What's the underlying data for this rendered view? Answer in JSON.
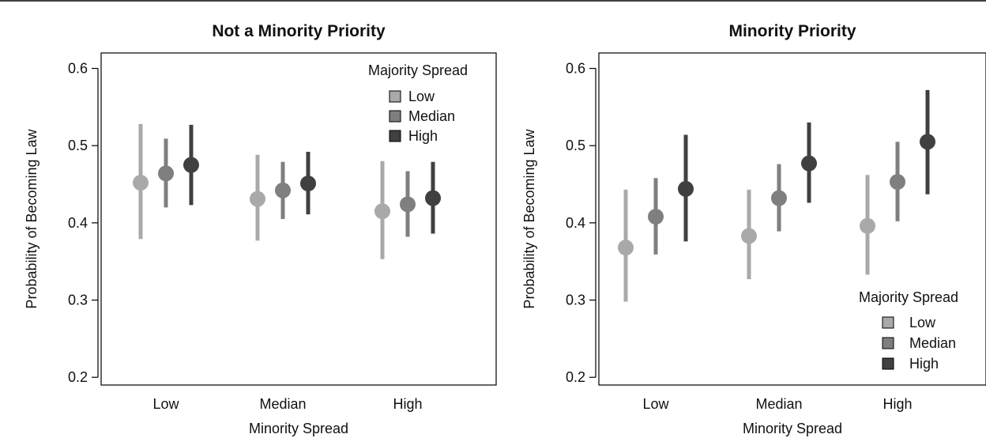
{
  "chart_data": [
    {
      "type": "scatter",
      "title": "Not a Minority Priority",
      "xlabel": "Minority Spread",
      "ylabel": "Probability of Becoming Law",
      "categories": [
        "Low",
        "Median",
        "High"
      ],
      "ylim": [
        0.19,
        0.62
      ],
      "yticks": [
        0.2,
        0.3,
        0.4,
        0.5,
        0.6
      ],
      "ytick_labels": [
        "0.2",
        "0.3",
        "0.4",
        "0.5",
        "0.6"
      ],
      "grid": false,
      "legend": {
        "title": "Majority Spread",
        "position": "top-right"
      },
      "series": [
        {
          "name": "Low",
          "color": "#a9a9a9",
          "values": [
            0.452,
            0.431,
            0.415
          ],
          "lower": [
            0.379,
            0.377,
            0.353
          ],
          "upper": [
            0.528,
            0.488,
            0.48
          ]
        },
        {
          "name": "Median",
          "color": "#7f7f7f",
          "values": [
            0.464,
            0.442,
            0.424
          ],
          "lower": [
            0.42,
            0.405,
            0.382
          ],
          "upper": [
            0.509,
            0.479,
            0.467
          ]
        },
        {
          "name": "High",
          "color": "#404040",
          "values": [
            0.475,
            0.451,
            0.432
          ],
          "lower": [
            0.423,
            0.411,
            0.386
          ],
          "upper": [
            0.527,
            0.492,
            0.479
          ]
        }
      ]
    },
    {
      "type": "scatter",
      "title": "Minority Priority",
      "xlabel": "Minority Spread",
      "ylabel": "Probability of Becoming Law",
      "categories": [
        "Low",
        "Median",
        "High"
      ],
      "ylim": [
        0.19,
        0.62
      ],
      "yticks": [
        0.2,
        0.3,
        0.4,
        0.5,
        0.6
      ],
      "ytick_labels": [
        "0.2",
        "0.3",
        "0.4",
        "0.5",
        "0.6"
      ],
      "grid": false,
      "legend": {
        "title": "Majority Spread",
        "position": "bottom-right"
      },
      "series": [
        {
          "name": "Low",
          "color": "#a9a9a9",
          "values": [
            0.368,
            0.383,
            0.396
          ],
          "lower": [
            0.298,
            0.327,
            0.333
          ],
          "upper": [
            0.443,
            0.443,
            0.462
          ]
        },
        {
          "name": "Median",
          "color": "#7f7f7f",
          "values": [
            0.408,
            0.432,
            0.453
          ],
          "lower": [
            0.359,
            0.389,
            0.402
          ],
          "upper": [
            0.458,
            0.476,
            0.505
          ]
        },
        {
          "name": "High",
          "color": "#404040",
          "values": [
            0.444,
            0.477,
            0.505
          ],
          "lower": [
            0.376,
            0.426,
            0.437
          ],
          "upper": [
            0.514,
            0.53,
            0.572
          ]
        }
      ]
    }
  ]
}
